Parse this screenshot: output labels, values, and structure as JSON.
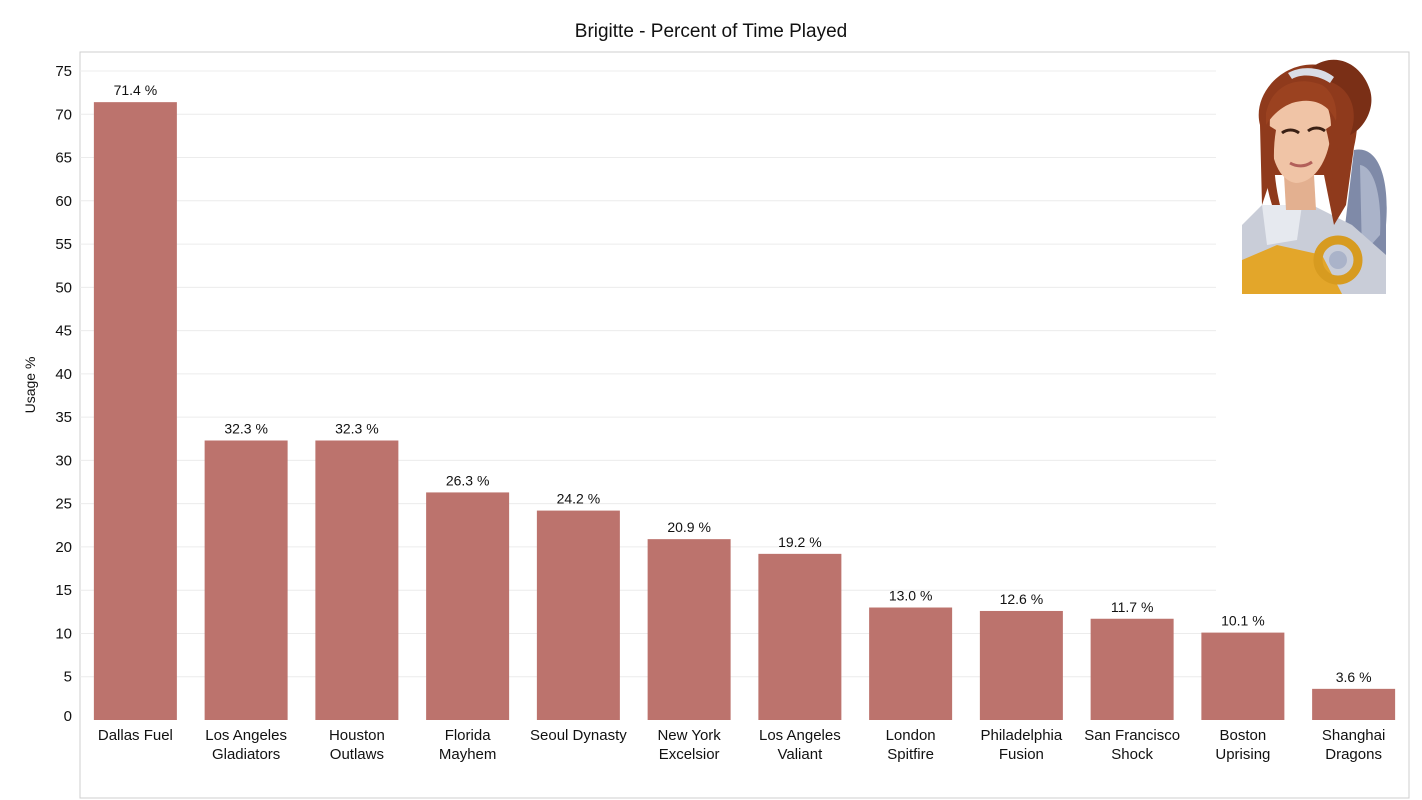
{
  "chart_data": {
    "type": "bar",
    "title": "Brigitte - Percent of Time Played",
    "ylabel": "Usage %",
    "xlabel": "",
    "ylim": [
      0,
      75
    ],
    "yticks": [
      0,
      5,
      10,
      15,
      20,
      25,
      30,
      35,
      40,
      45,
      50,
      55,
      60,
      65,
      70,
      75
    ],
    "grid": true,
    "bar_color": "#bc736d",
    "value_suffix": " %",
    "categories": [
      [
        "Dallas Fuel"
      ],
      [
        "Los Angeles",
        "Gladiators"
      ],
      [
        "Houston",
        "Outlaws"
      ],
      [
        "Florida",
        "Mayhem"
      ],
      [
        "Seoul Dynasty"
      ],
      [
        "New York",
        "Excelsior"
      ],
      [
        "Los Angeles",
        "Valiant"
      ],
      [
        "London",
        "Spitfire"
      ],
      [
        "Philadelphia",
        "Fusion"
      ],
      [
        "San Francisco",
        "Shock"
      ],
      [
        "Boston",
        "Uprising"
      ],
      [
        "Shanghai",
        "Dragons"
      ]
    ],
    "values": [
      71.4,
      32.3,
      32.3,
      26.3,
      24.2,
      20.9,
      19.2,
      13.0,
      12.6,
      11.7,
      10.1,
      3.6
    ]
  },
  "portrait": {
    "icon": "hero-portrait-icon",
    "colors": {
      "hair": "#8f3a1c",
      "skin": "#f0c4a6",
      "armor": "#c9cdd8",
      "gold": "#e3a62a",
      "background": "#7f8aa8"
    }
  }
}
